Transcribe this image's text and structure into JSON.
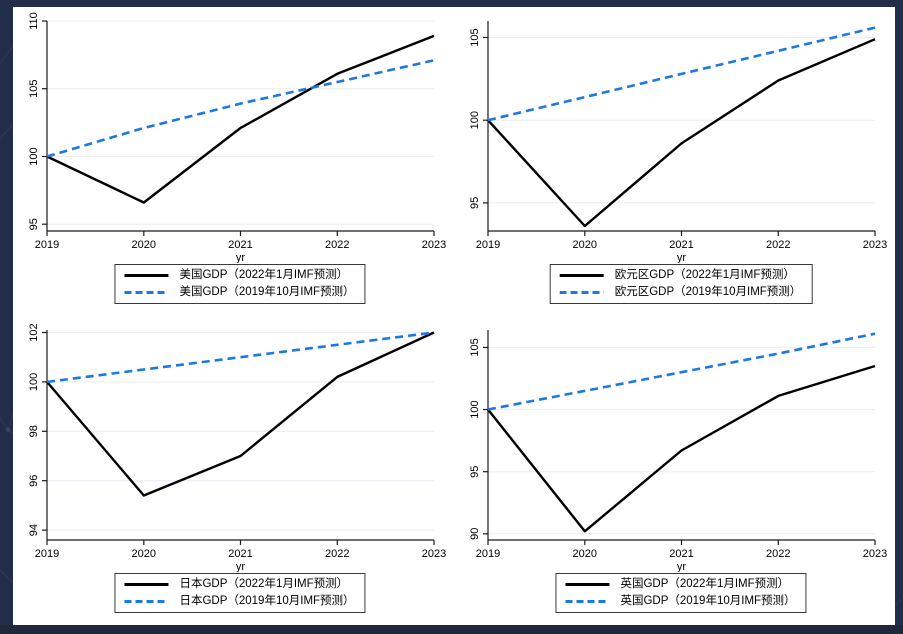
{
  "desktop": {
    "background_color": "#222d49",
    "bottom_strip_color": "#202939",
    "panel_background": "#ffffff"
  },
  "colors": {
    "actual_line": "#000000",
    "forecast_line": "#1d78e2",
    "gridline": "#e8eef3",
    "axis": "#1a1a1a"
  },
  "years": [
    2019,
    2020,
    2021,
    2022,
    2023
  ],
  "chart_data": [
    {
      "type": "line",
      "region": "美国",
      "xlabel": "yr",
      "x": [
        2019,
        2020,
        2021,
        2022,
        2023
      ],
      "yticks": [
        95,
        100,
        105,
        110
      ],
      "ylim": [
        94.5,
        110
      ],
      "grid": "horizontal",
      "legend_position": "bottom",
      "series": [
        {
          "name": "美国GDP（2022年1月IMF预测）",
          "style": "solid",
          "color": "#000000",
          "values": [
            100,
            96.6,
            102.1,
            106.1,
            108.9
          ]
        },
        {
          "name": "美国GDP（2019年10月IMF预测）",
          "style": "dashed",
          "color": "#1d78e2",
          "values": [
            100,
            102.1,
            103.9,
            105.5,
            107.1
          ]
        }
      ]
    },
    {
      "type": "line",
      "region": "欧元区",
      "xlabel": "yr",
      "x": [
        2019,
        2020,
        2021,
        2022,
        2023
      ],
      "yticks": [
        95,
        100,
        105
      ],
      "ylim": [
        93.3,
        106.0
      ],
      "grid": "horizontal",
      "legend_position": "bottom",
      "series": [
        {
          "name": "欧元区GDP（2022年1月IMF预测）",
          "style": "solid",
          "color": "#000000",
          "values": [
            100,
            93.6,
            98.6,
            102.4,
            104.9
          ]
        },
        {
          "name": "欧元区GDP（2019年10月IMF预测）",
          "style": "dashed",
          "color": "#1d78e2",
          "values": [
            100,
            101.4,
            102.8,
            104.2,
            105.6
          ]
        }
      ]
    },
    {
      "type": "line",
      "region": "日本",
      "xlabel": "yr",
      "x": [
        2019,
        2020,
        2021,
        2022,
        2023
      ],
      "yticks": [
        94,
        96,
        98,
        100,
        102
      ],
      "ylim": [
        93.6,
        102.1
      ],
      "grid": "horizontal",
      "legend_position": "bottom",
      "series": [
        {
          "name": "日本GDP（2022年1月IMF预测）",
          "style": "solid",
          "color": "#000000",
          "values": [
            100,
            95.4,
            97.0,
            100.2,
            102.0
          ]
        },
        {
          "name": "日本GDP（2019年10月IMF预测）",
          "style": "dashed",
          "color": "#1d78e2",
          "values": [
            100,
            100.5,
            101.0,
            101.5,
            102.0
          ]
        }
      ]
    },
    {
      "type": "line",
      "region": "英国",
      "xlabel": "yr",
      "x": [
        2019,
        2020,
        2021,
        2022,
        2023
      ],
      "yticks": [
        90,
        95,
        100,
        105
      ],
      "ylim": [
        89.5,
        106.4
      ],
      "grid": "horizontal",
      "legend_position": "bottom",
      "series": [
        {
          "name": "英国GDP（2022年1月IMF预测）",
          "style": "solid",
          "color": "#000000",
          "values": [
            100,
            90.2,
            96.7,
            101.1,
            103.5
          ]
        },
        {
          "name": "英国GDP（2019年10月IMF预测）",
          "style": "dashed",
          "color": "#1d78e2",
          "values": [
            100,
            101.5,
            103.0,
            104.5,
            106.1
          ]
        }
      ]
    }
  ]
}
